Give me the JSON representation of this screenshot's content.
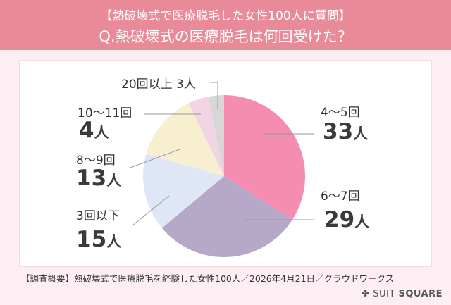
{
  "header": {
    "line1": "【熱破壊式で医療脱毛した女性100人に質問】",
    "line2": "Q.熱破壊式の医療脱毛は何回受けた？"
  },
  "chart_data": {
    "type": "pie",
    "title": "Q.熱破壊式の医療脱毛は何回受けた？",
    "unit": "人",
    "slices": [
      {
        "label": "4～5回",
        "value": 33,
        "color": "#f48db0"
      },
      {
        "label": "6～7回",
        "value": 29,
        "color": "#b6a9c8"
      },
      {
        "label": "3回以下",
        "value": 15,
        "color": "#dfe7f6"
      },
      {
        "label": "8～9回",
        "value": 13,
        "color": "#f7efcf"
      },
      {
        "label": "10～11回",
        "value": 4,
        "color": "#f2d4e5"
      },
      {
        "label": "20回以上",
        "value": 3,
        "color": "#d7d7d7"
      }
    ],
    "labels": {
      "s0": "4～5回",
      "s1": "6～7回",
      "s2": "3回以下",
      "s3": "8～9回",
      "s4": "10～11回",
      "s5": "20回以上 3人",
      "n0": "33",
      "n1": "29",
      "n2": "15",
      "n3": "13",
      "n4": "4",
      "unit": "人"
    }
  },
  "footer": {
    "note": "【調査概要】熱破壊式で医療脱毛を経験した女性100人／2026年4月21日／クラウドワークス",
    "brand_light": "SUIT",
    "brand_bold": "SQUARE"
  }
}
